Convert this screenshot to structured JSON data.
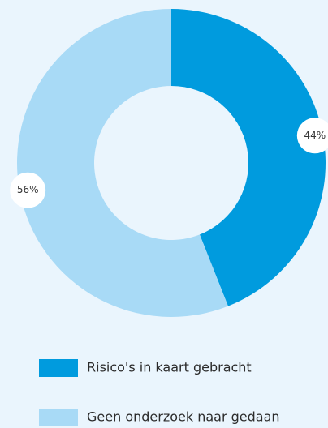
{
  "chart_data": {
    "type": "donut",
    "categories": [
      "Risico's in kaart gebracht",
      "Geen onderzoek naar gedaan"
    ],
    "values": [
      44,
      56
    ],
    "value_labels": [
      "44%",
      "56%"
    ],
    "colors": [
      "#009bde",
      "#a8daf6"
    ],
    "legend": "bottom"
  }
}
